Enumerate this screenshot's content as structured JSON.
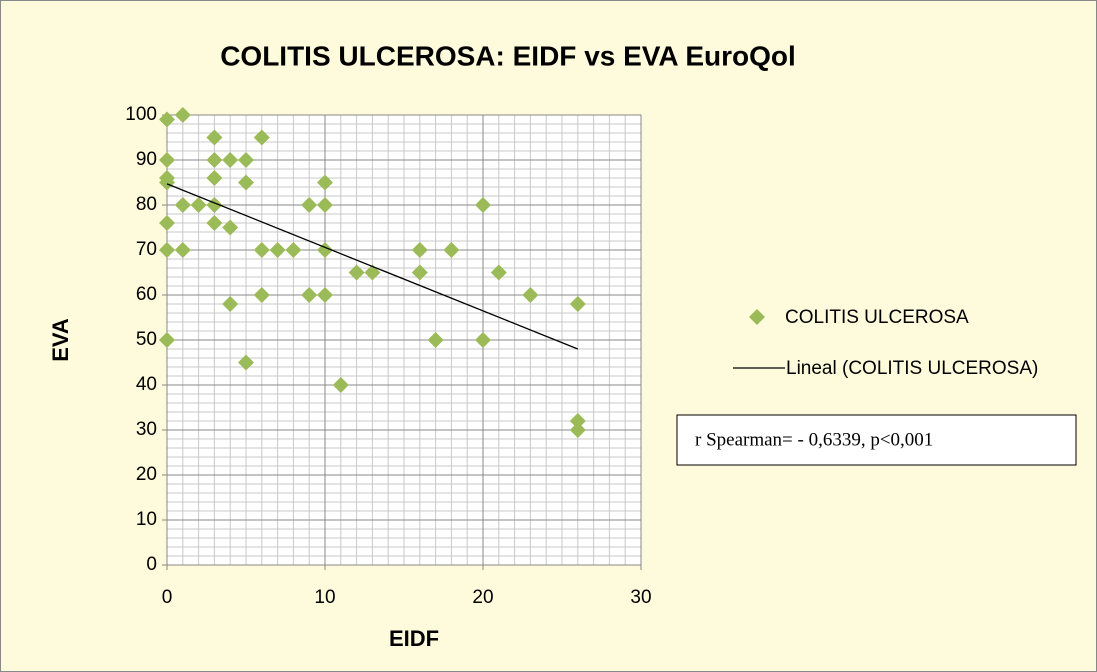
{
  "chart_data": {
    "type": "scatter",
    "title": "COLITIS ULCEROSA: EIDF vs EVA EuroQol",
    "x_label": "EIDF",
    "y_label": "EVA",
    "series": [
      {
        "name": "COLITIS ULCEROSA",
        "color": "#9bbb59",
        "x": [
          0,
          1,
          0,
          0,
          0,
          0,
          0,
          0,
          1,
          1,
          2,
          3,
          3,
          3,
          3,
          3,
          4,
          4,
          4,
          5,
          5,
          5,
          6,
          6,
          6,
          7,
          8,
          9,
          9,
          10,
          10,
          10,
          10,
          11,
          12,
          13,
          16,
          16,
          17,
          18,
          20,
          20,
          21,
          23,
          26,
          26,
          26
        ],
        "values": [
          99,
          100,
          90,
          86,
          85,
          76,
          70,
          50,
          80,
          70,
          80,
          95,
          90,
          86,
          80,
          76,
          90,
          75,
          58,
          90,
          85,
          45,
          95,
          70,
          60,
          70,
          70,
          80,
          60,
          85,
          80,
          70,
          60,
          40,
          65,
          65,
          70,
          65,
          50,
          70,
          80,
          50,
          65,
          60,
          58,
          32,
          30
        ]
      }
    ],
    "trendline": {
      "name": "Lineal (COLITIS ULCEROSA)",
      "color": "#000000",
      "x": [
        0,
        26
      ],
      "values": [
        84.7,
        48
      ]
    },
    "annotation": "r Spearman= - 0,6339, p<0,001",
    "xlim": [
      0,
      30
    ],
    "xticks": [
      0,
      10,
      20,
      30
    ],
    "ylim": [
      0,
      100
    ],
    "yticks": [
      0,
      10,
      20,
      30,
      40,
      50,
      60,
      70,
      80,
      90,
      100
    ],
    "grid": true,
    "minor_grid": {
      "x": 1,
      "y": 2
    },
    "legend": "right"
  }
}
